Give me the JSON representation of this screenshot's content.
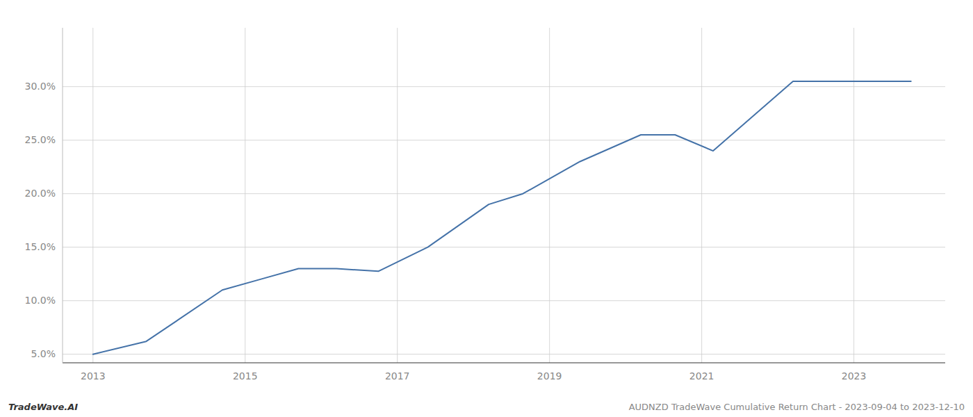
{
  "chart_data": {
    "type": "line",
    "x": [
      2013.0,
      2013.7,
      2014.7,
      2015.2,
      2015.7,
      2016.2,
      2016.75,
      2017.4,
      2018.2,
      2018.65,
      2019.4,
      2020.2,
      2020.65,
      2021.15,
      2022.2,
      2022.65,
      2023.0,
      2023.75
    ],
    "values": [
      5.0,
      6.2,
      11.0,
      12.0,
      13.0,
      13.0,
      12.75,
      15.0,
      19.0,
      20.0,
      23.0,
      25.5,
      25.5,
      24.0,
      30.5,
      30.5,
      30.5,
      30.5
    ],
    "color": "#4472a8",
    "xlim": [
      2012.6,
      2024.2
    ],
    "ylim": [
      4.2,
      35.5
    ],
    "xticks": [
      2013,
      2015,
      2017,
      2019,
      2021,
      2023
    ],
    "yticks": [
      {
        "value": 5.0,
        "label": "5.0%"
      },
      {
        "value": 10.0,
        "label": "10.0%"
      },
      {
        "value": 15.0,
        "label": "15.0%"
      },
      {
        "value": 20.0,
        "label": "20.0%"
      },
      {
        "value": 25.0,
        "label": "25.0%"
      },
      {
        "value": 30.0,
        "label": "30.0%"
      }
    ],
    "grid": true,
    "annotations": [
      "TradeWave.AI",
      "AUDNZD TradeWave Cumulative Return Chart - 2023-09-04 to 2023-12-10"
    ]
  }
}
